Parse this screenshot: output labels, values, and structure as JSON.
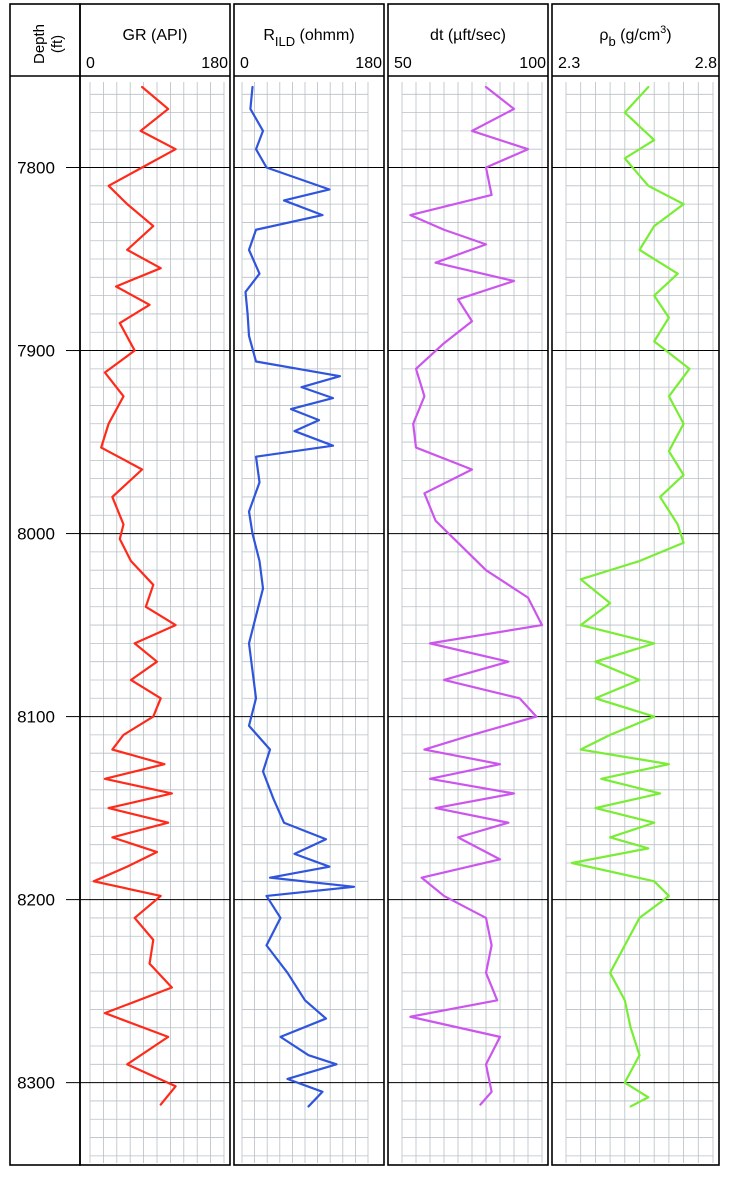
{
  "depth_track": {
    "label": "Depth",
    "unit": "(ft)"
  },
  "chart_data": {
    "type": "line",
    "depth_axis": {
      "range": [
        7750,
        8345
      ],
      "ticks": [
        7800,
        7900,
        8000,
        8100,
        8200,
        8300
      ],
      "tick_labels": [
        "7800",
        "7900",
        "8000",
        "8100",
        "8200",
        "8300"
      ],
      "reversed": true
    },
    "grid": true,
    "tracks": [
      {
        "id": "gr",
        "title_main": "GR (API)",
        "title_sub": "",
        "title_rest": "",
        "title_sup": "",
        "min_label": "0",
        "max_label": "180",
        "range": [
          0,
          180
        ],
        "color": "#ff2a1a",
        "depth": [
          7756,
          7768,
          7780,
          7790,
          7800,
          7810,
          7820,
          7832,
          7845,
          7855,
          7865,
          7875,
          7885,
          7900,
          7912,
          7925,
          7940,
          7953,
          7965,
          7980,
          7995,
          8003,
          8015,
          8028,
          8040,
          8050,
          8060,
          8070,
          8080,
          8090,
          8100,
          8110,
          8118,
          8126,
          8134,
          8142,
          8150,
          8158,
          8166,
          8174,
          8182,
          8190,
          8198,
          8210,
          8222,
          8235,
          8248,
          8262,
          8275,
          8290,
          8302,
          8312
        ],
        "values": [
          70,
          105,
          68,
          115,
          70,
          25,
          50,
          85,
          50,
          95,
          35,
          80,
          40,
          60,
          20,
          45,
          25,
          15,
          70,
          30,
          45,
          40,
          55,
          85,
          75,
          115,
          60,
          90,
          55,
          95,
          85,
          45,
          30,
          100,
          20,
          110,
          25,
          105,
          30,
          90,
          50,
          5,
          95,
          60,
          85,
          80,
          110,
          20,
          105,
          50,
          115,
          95
        ]
      },
      {
        "id": "rild",
        "title_main": "R",
        "title_sub": "ILD",
        "title_rest": " (ohmm)",
        "title_sup": "",
        "min_label": "0",
        "max_label": "180",
        "range": [
          0,
          180
        ],
        "color": "#2f55dd",
        "depth": [
          7756,
          7768,
          7780,
          7790,
          7800,
          7812,
          7818,
          7826,
          7834,
          7845,
          7858,
          7868,
          7880,
          7892,
          7906,
          7914,
          7920,
          7926,
          7932,
          7938,
          7944,
          7952,
          7958,
          7972,
          7988,
          8000,
          8015,
          8030,
          8045,
          8060,
          8075,
          8090,
          8105,
          8118,
          8130,
          8145,
          8158,
          8167,
          8175,
          8182,
          8188,
          8193,
          8198,
          8210,
          8225,
          8240,
          8255,
          8265,
          8275,
          8285,
          8290,
          8298,
          8305,
          8313
        ],
        "values": [
          15,
          12,
          30,
          20,
          35,
          125,
          60,
          115,
          20,
          10,
          25,
          5,
          8,
          10,
          20,
          140,
          85,
          130,
          70,
          110,
          75,
          130,
          20,
          25,
          10,
          15,
          25,
          30,
          20,
          10,
          15,
          20,
          10,
          40,
          30,
          45,
          60,
          120,
          75,
          125,
          40,
          160,
          35,
          55,
          35,
          65,
          90,
          120,
          55,
          95,
          135,
          65,
          115,
          95
        ]
      },
      {
        "id": "dt",
        "title_main": "dt (µft/sec)",
        "title_sub": "",
        "title_rest": "",
        "title_sup": "",
        "min_label": "50",
        "max_label": "100",
        "range": [
          50,
          100
        ],
        "color": "#cc55ee",
        "depth": [
          7756,
          7768,
          7780,
          7790,
          7800,
          7815,
          7826,
          7834,
          7842,
          7852,
          7862,
          7872,
          7884,
          7896,
          7910,
          7925,
          7940,
          7953,
          7965,
          7978,
          7993,
          8005,
          8020,
          8035,
          8050,
          8060,
          8070,
          8080,
          8090,
          8100,
          8110,
          8118,
          8126,
          8134,
          8142,
          8150,
          8158,
          8166,
          8178,
          8188,
          8198,
          8210,
          8225,
          8240,
          8255,
          8264,
          8275,
          8290,
          8305,
          8312
        ],
        "values": [
          80,
          90,
          75,
          95,
          80,
          82,
          53,
          65,
          80,
          62,
          90,
          70,
          75,
          65,
          55,
          58,
          54,
          55,
          75,
          58,
          62,
          70,
          80,
          95,
          100,
          60,
          88,
          65,
          92,
          98,
          75,
          58,
          85,
          60,
          90,
          62,
          88,
          70,
          85,
          57,
          65,
          80,
          82,
          80,
          84,
          53,
          85,
          80,
          82,
          78
        ]
      },
      {
        "id": "rhob",
        "title_main": "ρ",
        "title_sub": "b",
        "title_rest": " (g/cm",
        "title_sup": "3",
        "min_label": "2.3",
        "max_label": "2.8",
        "range": [
          2.3,
          2.8
        ],
        "color": "#77ee33",
        "depth": [
          7756,
          7770,
          7785,
          7795,
          7810,
          7820,
          7832,
          7845,
          7858,
          7870,
          7882,
          7895,
          7910,
          7925,
          7940,
          7955,
          7968,
          7980,
          7995,
          8005,
          8015,
          8025,
          8038,
          8050,
          8060,
          8070,
          8080,
          8090,
          8100,
          8110,
          8118,
          8126,
          8134,
          8142,
          8150,
          8158,
          8166,
          8172,
          8180,
          8190,
          8198,
          8210,
          8225,
          8240,
          8255,
          8270,
          8285,
          8300,
          8308,
          8313
        ],
        "values": [
          2.58,
          2.5,
          2.6,
          2.5,
          2.58,
          2.7,
          2.6,
          2.55,
          2.68,
          2.6,
          2.65,
          2.6,
          2.72,
          2.65,
          2.7,
          2.65,
          2.7,
          2.62,
          2.68,
          2.7,
          2.55,
          2.35,
          2.45,
          2.35,
          2.6,
          2.4,
          2.55,
          2.4,
          2.6,
          2.45,
          2.35,
          2.65,
          2.42,
          2.62,
          2.4,
          2.6,
          2.45,
          2.58,
          2.32,
          2.6,
          2.65,
          2.55,
          2.5,
          2.45,
          2.5,
          2.52,
          2.55,
          2.5,
          2.58,
          2.52
        ]
      }
    ]
  }
}
